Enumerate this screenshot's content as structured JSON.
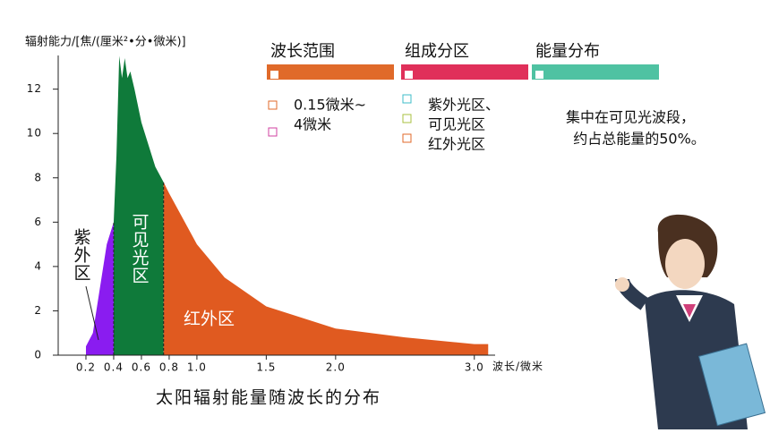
{
  "chart_data": {
    "type": "area",
    "title": "太阳辐射能量随波长的分布",
    "y_label": "辐射能力/[焦/(厘米²•分•微米)]",
    "x_label": "波长/微米",
    "x": [
      0.2,
      0.2,
      0.25,
      0.3,
      0.35,
      0.4,
      0.42,
      0.44,
      0.46,
      0.48,
      0.5,
      0.52,
      0.55,
      0.6,
      0.7,
      0.76,
      0.8,
      1.0,
      1.2,
      1.5,
      2.0,
      2.5,
      3.0,
      3.1
    ],
    "values": [
      0,
      0.4,
      1,
      3,
      5,
      6,
      9,
      13.5,
      12.5,
      13.4,
      12.5,
      12.8,
      12,
      10.5,
      8.5,
      7.8,
      7.3,
      5,
      3.5,
      2.2,
      1.2,
      0.8,
      0.5,
      0.5
    ],
    "regions": [
      {
        "name": "紫外区",
        "color": "#8a1cf0",
        "range": [
          0.2,
          0.4
        ]
      },
      {
        "name": "可见光区",
        "color": "#0f7a3a",
        "range": [
          0.4,
          0.76
        ]
      },
      {
        "name": "红外区",
        "color": "#e05a20",
        "range": [
          0.76,
          3.1
        ]
      }
    ],
    "xlim": [
      0,
      3.15
    ],
    "ylim": [
      0,
      13.6
    ],
    "xticks": [
      0.2,
      0.4,
      0.6,
      0.8,
      {
        "value": 1,
        "label": "1.0"
      },
      1.5,
      {
        "value": 2,
        "label": "2.0"
      },
      {
        "value": 3,
        "label": "3.0"
      }
    ],
    "yticks": [
      0,
      2,
      4,
      6,
      8,
      10,
      12
    ]
  },
  "panel": {
    "columns": [
      {
        "heading": "波长范围",
        "color": "#e06a2a",
        "lines": [
          "0.15微米~",
          "4微米"
        ]
      },
      {
        "heading": "组成分区",
        "color": "#e0305a",
        "lines": [
          "紫外光区、",
          "可见光区",
          "红外光区"
        ]
      },
      {
        "heading": "能量分布",
        "color": "#4fc2a2",
        "lines": [
          "集中在可见光波段，",
          "约占总能量的50%。"
        ]
      }
    ]
  }
}
